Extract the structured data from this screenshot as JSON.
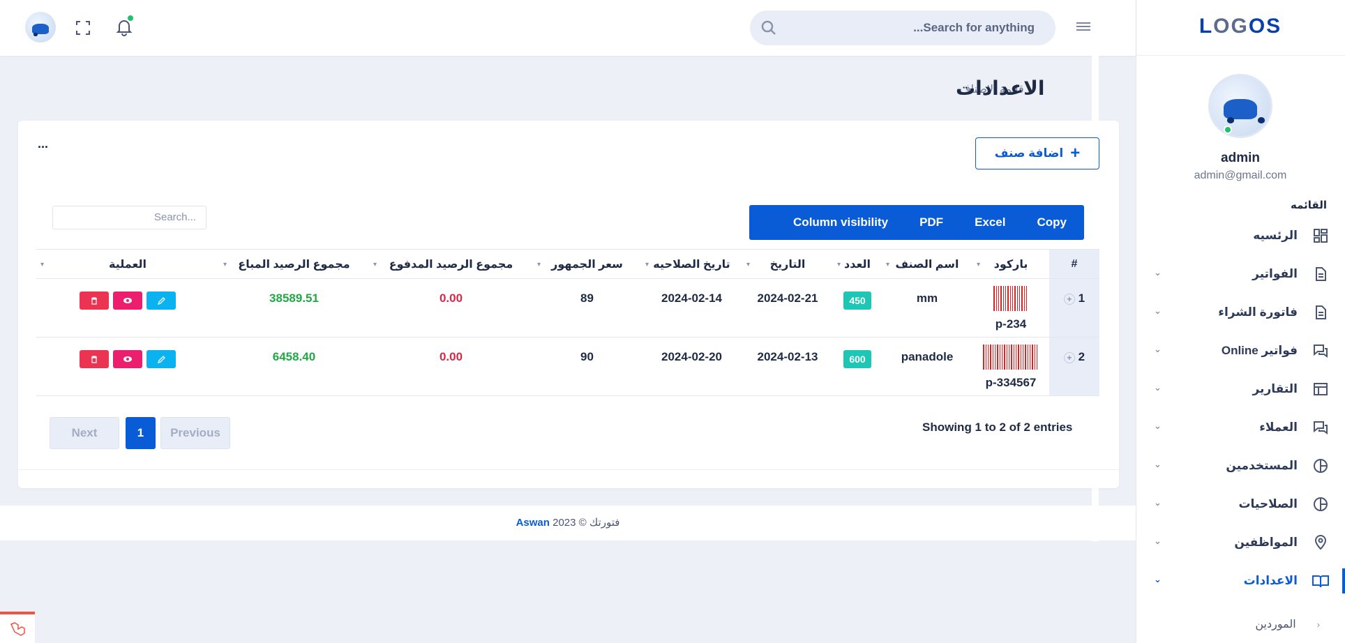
{
  "app": {
    "logo_a": "L",
    "logo_b": "OG",
    "logo_c": "OS"
  },
  "header": {
    "search_placeholder": "...Search for anything"
  },
  "profile": {
    "name": "admin",
    "email": "admin@gmail.com"
  },
  "sidebar": {
    "menu_title": "القائمه",
    "items": [
      {
        "label": "الرئسيه",
        "icon": "dashboard-icon",
        "chevron": false,
        "active": false
      },
      {
        "label": "الفواتير",
        "icon": "document-icon",
        "chevron": true,
        "active": false
      },
      {
        "label": "فاتورة الشراء",
        "icon": "document-icon",
        "chevron": true,
        "active": false
      },
      {
        "label": "فواتير Online",
        "icon": "chat-icon",
        "chevron": true,
        "active": false
      },
      {
        "label": "التقارير",
        "icon": "table-icon",
        "chevron": true,
        "active": false
      },
      {
        "label": "العملاء",
        "icon": "chat-icon",
        "chevron": true,
        "active": false
      },
      {
        "label": "المستخدمين",
        "icon": "pie-icon",
        "chevron": true,
        "active": false
      },
      {
        "label": "الصلاحيات",
        "icon": "pie-icon",
        "chevron": true,
        "active": false
      },
      {
        "label": "المواظفين",
        "icon": "location-icon",
        "chevron": true,
        "active": false
      },
      {
        "label": "الاعدادات",
        "icon": "book-icon",
        "chevron": true,
        "active": true
      }
    ],
    "sub_item": "الموردين"
  },
  "page": {
    "title": "الاعدادات",
    "breadcrumb": "قائمة الاصناف",
    "more": "..."
  },
  "toolbar": {
    "add_label": "اضافة صنف",
    "buttons": [
      "Copy",
      "Excel",
      "PDF",
      "Column visibility"
    ],
    "search_placeholder": "Search..."
  },
  "table": {
    "headers": [
      "#",
      "باركود",
      "اسم الصنف",
      "العدد",
      "التاريخ",
      "تاريخ الصلاحيه",
      "سعر الجمهور",
      "مجموع الرصيد المدفوع",
      "مجموع الرصيد المباع",
      "العملية"
    ],
    "rows": [
      {
        "idx": "1",
        "barcode": "p-234",
        "name": "mm",
        "qty": "450",
        "date": "2024-02-21",
        "expiry": "2024-02-14",
        "price": "89",
        "paid": "0.00",
        "sold": "38589.51"
      },
      {
        "idx": "2",
        "barcode": "p-334567",
        "name": "panadole",
        "qty": "600",
        "date": "2024-02-13",
        "expiry": "2024-02-20",
        "price": "90",
        "paid": "0.00",
        "sold": "6458.40"
      }
    ]
  },
  "pagination": {
    "info": "Showing 1 to 2 of 2 entries",
    "previous": "Previous",
    "current": "1",
    "next": "Next"
  },
  "footer": {
    "brand": "Aswan",
    "text": "فتورتك © 2023"
  },
  "colors": {
    "accent": "#0a5bd6",
    "success": "#1ec6b6",
    "danger": "#d6294a",
    "positive": "#21a845"
  }
}
